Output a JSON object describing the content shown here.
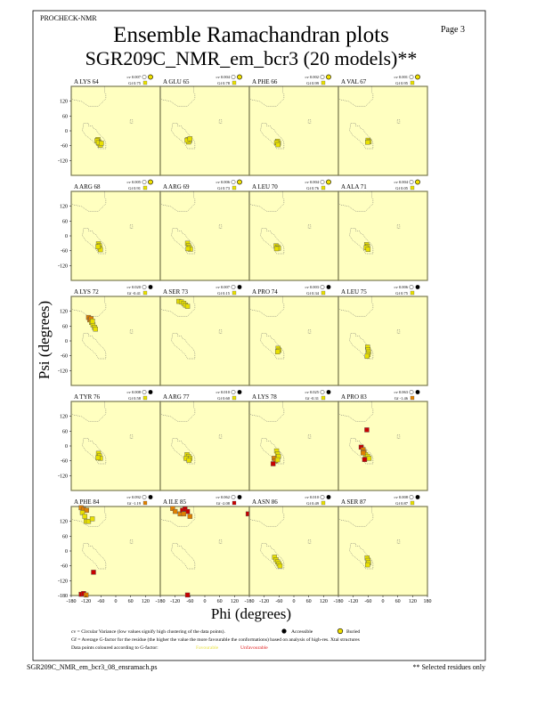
{
  "header": {
    "program": "PROCHECK-NMR",
    "page": "Page  3",
    "title": "Ensemble Ramachandran plots",
    "subtitle": "SGR209C_NMR_em_bcr3 (20 models)**"
  },
  "footer": {
    "filename": "SGR209C_NMR_em_bcr3_08_ensramach.ps",
    "note": "** Selected residues only"
  },
  "legend": {
    "cv_text": "cv = Circular Variance (low values signify high clustering of the data points).",
    "accessible": "Accessible",
    "buried": "Buried",
    "gf_text": "Gf = Average G-factor for the residue (the higher the value the more favourable the conformations) based on analysis of high-res. Xtal structures",
    "colour_text": "Data points coloured according to G-factor:",
    "favourable": "Favourable",
    "unfavourable": "Unfavourable"
  },
  "colors": {
    "plot_background": "#ffffc0",
    "favourable": "#e8e000",
    "intermediate": "#e08000",
    "unfavourable": "#c80000",
    "legend_favourable": "#ffff60",
    "legend_unfavourable": "#e02020"
  },
  "chart_data": {
    "type": "scatter",
    "xlabel": "Phi (degrees)",
    "ylabel": "Psi (degrees)",
    "xlim": [
      -180,
      180
    ],
    "ylim": [
      -180,
      180
    ],
    "xticks": [
      "-180",
      "-120",
      "-60",
      "0",
      "60",
      "120",
      "180"
    ],
    "yticks": [
      "-180",
      "-120",
      "-60",
      "0",
      "60",
      "120"
    ],
    "panels": [
      {
        "residue": "A LYS 64",
        "cv": "cv 0.007",
        "gf": "Gf 0.75",
        "gf_color": "favourable",
        "exposure": "buried",
        "points": [
          [
            -72,
            -35,
            "y"
          ],
          [
            -68,
            -45,
            "y"
          ],
          [
            -65,
            -52,
            "y"
          ],
          [
            -76,
            -40,
            "y"
          ],
          [
            -62,
            -58,
            "y"
          ],
          [
            -70,
            -48,
            "y"
          ],
          [
            -58,
            -50,
            "y"
          ]
        ]
      },
      {
        "residue": "A GLU 65",
        "cv": "cv 0.004",
        "gf": "Gf 0.78",
        "gf_color": "favourable",
        "exposure": "buried",
        "points": [
          [
            -68,
            -35,
            "y"
          ],
          [
            -62,
            -40,
            "y"
          ],
          [
            -66,
            -45,
            "y"
          ],
          [
            -72,
            -38,
            "y"
          ],
          [
            -60,
            -32,
            "y"
          ]
        ]
      },
      {
        "residue": "A PHE 66",
        "cv": "cv 0.002",
        "gf": "Gf 0.99",
        "gf_color": "favourable",
        "exposure": "buried",
        "points": [
          [
            -66,
            -42,
            "y"
          ],
          [
            -62,
            -50,
            "y"
          ],
          [
            -70,
            -48,
            "y"
          ],
          [
            -64,
            -56,
            "y"
          ]
        ]
      },
      {
        "residue": "A VAL 67",
        "cv": "cv 0.001",
        "gf": "Gf 0.95",
        "gf_color": "favourable",
        "exposure": "buried",
        "points": [
          [
            -60,
            -38,
            "y"
          ],
          [
            -56,
            -44,
            "y"
          ],
          [
            -62,
            -46,
            "y"
          ]
        ]
      },
      {
        "residue": "A ARG 68",
        "cv": "cv 0.005",
        "gf": "Gf 0.91",
        "gf_color": "favourable",
        "exposure": "buried",
        "points": [
          [
            -70,
            -32,
            "y"
          ],
          [
            -66,
            -40,
            "y"
          ],
          [
            -64,
            -50,
            "y"
          ],
          [
            -62,
            -56,
            "y"
          ],
          [
            -72,
            -44,
            "y"
          ]
        ]
      },
      {
        "residue": "A ARG 69",
        "cv": "cv 0.006",
        "gf": "Gf 0.73",
        "gf_color": "favourable",
        "exposure": "buried",
        "points": [
          [
            -70,
            -30,
            "y"
          ],
          [
            -66,
            -40,
            "y"
          ],
          [
            -62,
            -48,
            "y"
          ],
          [
            -58,
            -54,
            "y"
          ],
          [
            -68,
            -52,
            "y"
          ]
        ]
      },
      {
        "residue": "A LEU 70",
        "cv": "cv 0.004",
        "gf": "Gf 0.76",
        "gf_color": "favourable",
        "exposure": "buried",
        "points": [
          [
            -72,
            -40,
            "y"
          ],
          [
            -66,
            -45,
            "y"
          ],
          [
            -62,
            -50,
            "y"
          ],
          [
            -70,
            -52,
            "y"
          ]
        ]
      },
      {
        "residue": "A ALA 71",
        "cv": "cv 0.004",
        "gf": "Gf 0.05",
        "gf_color": "favourable",
        "exposure": "buried",
        "points": [
          [
            -66,
            -35,
            "y"
          ],
          [
            -62,
            -42,
            "y"
          ],
          [
            -68,
            -48,
            "y"
          ],
          [
            -60,
            -55,
            "y"
          ]
        ]
      },
      {
        "residue": "A LYS 72",
        "cv": "cv 0.020",
        "gf": "Gf -0.41",
        "gf_color": "favourable",
        "exposure": "accessible",
        "points": [
          [
            -110,
            95,
            "o"
          ],
          [
            -105,
            85,
            "o"
          ],
          [
            -98,
            75,
            "y"
          ],
          [
            -92,
            65,
            "y"
          ],
          [
            -86,
            55,
            "y"
          ],
          [
            -100,
            90,
            "o"
          ],
          [
            -94,
            80,
            "y"
          ],
          [
            -82,
            48,
            "y"
          ]
        ]
      },
      {
        "residue": "A SER 73",
        "cv": "cv 0.007",
        "gf": "Gf 0.15",
        "gf_color": "favourable",
        "exposure": "accessible",
        "points": [
          [
            -105,
            160,
            "y"
          ],
          [
            -95,
            158,
            "y"
          ],
          [
            -85,
            152,
            "y"
          ],
          [
            -78,
            145,
            "y"
          ],
          [
            -70,
            140,
            "y"
          ]
        ]
      },
      {
        "residue": "A PRO 74",
        "cv": "cv 0.003",
        "gf": "Gf 0.34",
        "gf_color": "favourable",
        "exposure": "accessible",
        "points": [
          [
            -64,
            -30,
            "y"
          ],
          [
            -60,
            -38,
            "y"
          ],
          [
            -66,
            -44,
            "y"
          ]
        ]
      },
      {
        "residue": "A LEU 75",
        "cv": "cv 0.006",
        "gf": "Gf 0.75",
        "gf_color": "favourable",
        "exposure": "accessible",
        "points": [
          [
            -62,
            -25,
            "y"
          ],
          [
            -60,
            -35,
            "y"
          ],
          [
            -58,
            -45,
            "y"
          ],
          [
            -60,
            -55,
            "y"
          ],
          [
            -64,
            -62,
            "y"
          ]
        ]
      },
      {
        "residue": "A TYR 76",
        "cv": "cv 0.008",
        "gf": "Gf 0.58",
        "gf_color": "favourable",
        "exposure": "accessible",
        "points": [
          [
            -70,
            -30,
            "y"
          ],
          [
            -66,
            -40,
            "y"
          ],
          [
            -62,
            -50,
            "y"
          ],
          [
            -72,
            -48,
            "y"
          ]
        ]
      },
      {
        "residue": "A ARG 77",
        "cv": "cv 0.010",
        "gf": "Gf 0.60",
        "gf_color": "favourable",
        "exposure": "accessible",
        "points": [
          [
            -72,
            -35,
            "y"
          ],
          [
            -66,
            -42,
            "y"
          ],
          [
            -60,
            -50,
            "y"
          ],
          [
            -76,
            -50,
            "y"
          ],
          [
            -64,
            -58,
            "y"
          ]
        ]
      },
      {
        "residue": "A LYS 78",
        "cv": "cv 0.025",
        "gf": "Gf -0.31",
        "gf_color": "favourable",
        "exposure": "accessible",
        "points": [
          [
            -70,
            -20,
            "y"
          ],
          [
            -66,
            -32,
            "y"
          ],
          [
            -62,
            -42,
            "y"
          ],
          [
            -80,
            -50,
            "o"
          ],
          [
            -74,
            -60,
            "o"
          ],
          [
            -84,
            -72,
            "r"
          ],
          [
            -66,
            -56,
            "y"
          ]
        ]
      },
      {
        "residue": "A PRO 83",
        "cv": "cv 0.063",
        "gf": "Gf -1.46",
        "gf_color": "intermediate",
        "exposure": "accessible",
        "points": [
          [
            -65,
            65,
            "r"
          ],
          [
            -88,
            -5,
            "r"
          ],
          [
            -80,
            -15,
            "o"
          ],
          [
            -76,
            -25,
            "o"
          ],
          [
            -70,
            -35,
            "y"
          ],
          [
            -62,
            -42,
            "y"
          ],
          [
            -56,
            -50,
            "y"
          ],
          [
            -74,
            -55,
            "r"
          ],
          [
            -80,
            -28,
            "o"
          ]
        ]
      },
      {
        "residue": "A PHE 84",
        "cv": "cv 0.092",
        "gf": "Gf -1.19",
        "gf_color": "intermediate",
        "exposure": "accessible",
        "points": [
          [
            -140,
            175,
            "o"
          ],
          [
            -130,
            168,
            "o"
          ],
          [
            -118,
            165,
            "o"
          ],
          [
            -135,
            155,
            "y"
          ],
          [
            -125,
            140,
            "y"
          ],
          [
            -120,
            120,
            "y"
          ],
          [
            -110,
            120,
            "y"
          ],
          [
            -95,
            130,
            "y"
          ],
          [
            -90,
            -86,
            "r"
          ],
          [
            -140,
            -175,
            "r"
          ],
          [
            -130,
            -172,
            "r"
          ],
          [
            -120,
            -178,
            "o"
          ]
        ]
      },
      {
        "residue": "A ILE 85",
        "cv": "cv 0.062",
        "gf": "Gf -2.08",
        "gf_color": "unfavourable",
        "exposure": "accessible",
        "points": [
          [
            -130,
            172,
            "o"
          ],
          [
            -120,
            160,
            "o"
          ],
          [
            -100,
            150,
            "o"
          ],
          [
            -90,
            165,
            "r"
          ],
          [
            -80,
            170,
            "r"
          ],
          [
            -70,
            160,
            "r"
          ],
          [
            -85,
            150,
            "o"
          ],
          [
            -60,
            140,
            "o"
          ],
          [
            175,
            150,
            "r"
          ],
          [
            -70,
            -178,
            "r"
          ]
        ]
      },
      {
        "residue": "A ASN 86",
        "cv": "cv 0.010",
        "gf": "Gf 0.49",
        "gf_color": "favourable",
        "exposure": "accessible",
        "points": [
          [
            -78,
            -25,
            "y"
          ],
          [
            -72,
            -35,
            "y"
          ],
          [
            -66,
            -44,
            "y"
          ],
          [
            -60,
            -52,
            "y"
          ],
          [
            -56,
            -60,
            "y"
          ]
        ]
      },
      {
        "residue": "A SER 87",
        "cv": "cv 0.008",
        "gf": "Gf 0.87",
        "gf_color": "favourable",
        "exposure": "accessible",
        "points": [
          [
            -64,
            -28,
            "y"
          ],
          [
            -60,
            -38,
            "y"
          ],
          [
            -58,
            -48,
            "y"
          ],
          [
            -62,
            -56,
            "y"
          ]
        ]
      }
    ]
  }
}
